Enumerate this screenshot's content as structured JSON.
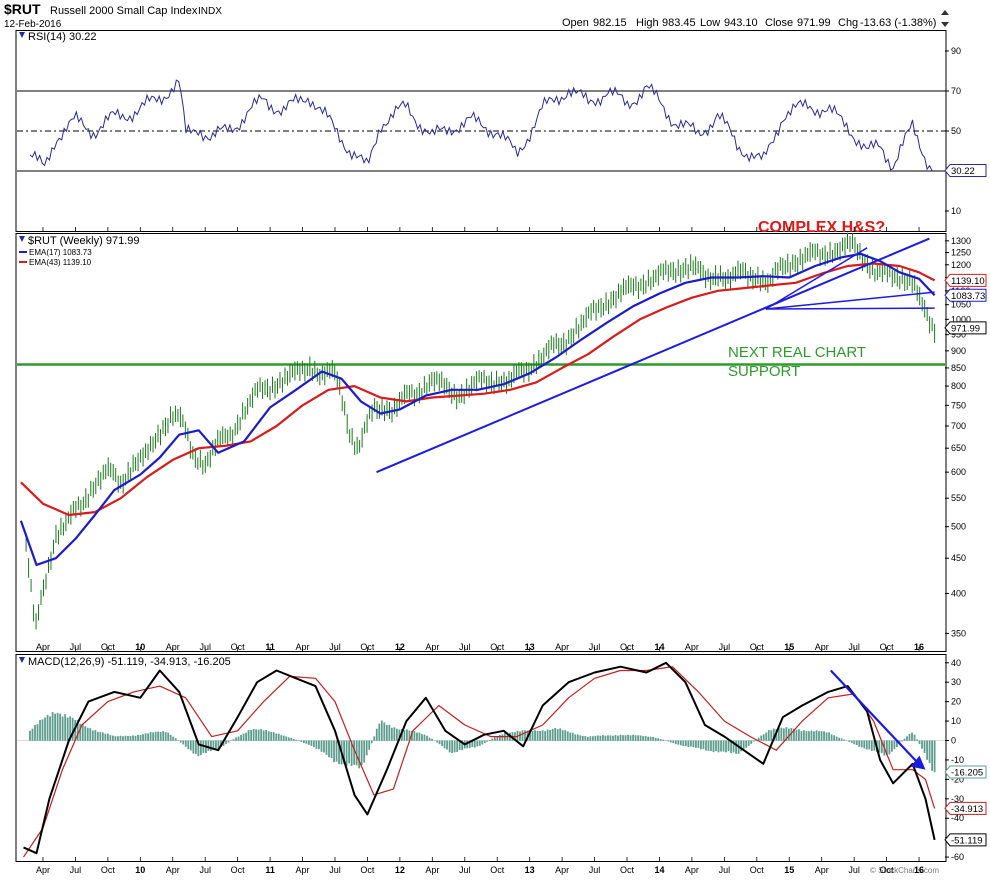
{
  "header": {
    "symbol": "$RUT",
    "name": "Russell 2000 Small Cap Index",
    "exchange": "INDX",
    "date": "12-Feb-2016",
    "open_label": "Open",
    "open": "982.15",
    "high_label": "High",
    "high": "983.45",
    "low_label": "Low",
    "low": "943.10",
    "close_label": "Close",
    "close": "971.99",
    "chg_label": "Chg",
    "chg": "-13.63 (-1.38%)",
    "watermark": "© StockCharts.com"
  },
  "colors": {
    "price_bars": "#1a7a1a",
    "ema17": "#1c1cc8",
    "ema43": "#d81c1c",
    "rsi": "#2a2a9a",
    "macd": "#000000",
    "signal": "#c02020",
    "histogram": "#5f9e8f",
    "support": "#2e9a2e",
    "annotation_red": "#e01818",
    "trendline": "#1c1ce0"
  },
  "chart_data": [
    {
      "type": "line",
      "panel": "rsi",
      "legend": "RSI(14) 30.22",
      "ylim": [
        0,
        100
      ],
      "y_ticks": [
        10,
        30,
        50,
        70,
        90
      ],
      "reference_lines": [
        30,
        50,
        70
      ],
      "last_value_label": "30.22",
      "series": [
        {
          "name": "RSI(14)",
          "x": [
            2009.15,
            2009.26,
            2009.35,
            2009.5,
            2009.65,
            2009.8,
            2009.98,
            2010.15,
            2010.3,
            2010.35,
            2010.45,
            2010.55,
            2010.75,
            2010.95,
            2011.1,
            2011.3,
            2011.45,
            2011.6,
            2011.75,
            2011.85,
            2012.05,
            2012.25,
            2012.4,
            2012.55,
            2012.75,
            2012.9,
            2013.1,
            2013.3,
            2013.45,
            2013.6,
            2013.75,
            2013.9,
            2014.1,
            2014.3,
            2014.45,
            2014.6,
            2014.8,
            2014.95,
            2015.15,
            2015.3,
            2015.45,
            2015.6,
            2015.7,
            2015.8,
            2015.95,
            2016.1
          ],
          "values": [
            38,
            31,
            47,
            55,
            50,
            57,
            60,
            67,
            74,
            48,
            52,
            46,
            54,
            66,
            60,
            68,
            55,
            42,
            31,
            54,
            62,
            47,
            52,
            55,
            50,
            38,
            61,
            71,
            64,
            70,
            63,
            72,
            56,
            48,
            58,
            43,
            34,
            58,
            63,
            60,
            53,
            39,
            43,
            33,
            52,
            30.22
          ]
        }
      ]
    },
    {
      "type": "line",
      "panel": "price",
      "scale": "log",
      "legend": [
        "$RUT (Weekly) 971.99",
        "EMA(17) 1083.73",
        "EMA(43) 1139.10"
      ],
      "ylim": [
        330,
        1330
      ],
      "y_ticks": [
        350,
        400,
        450,
        500,
        550,
        600,
        650,
        700,
        750,
        800,
        850,
        900,
        950,
        1000,
        1050,
        1100,
        1150,
        1200,
        1250,
        1300
      ],
      "last_value_labels": [
        "1139.10",
        "1083.73",
        "971.99"
      ],
      "annotations": [
        "COMPLEX H&S?",
        "NEXT REAL CHART",
        "SUPPORT"
      ],
      "support_level": 860,
      "series": [
        {
          "name": "$RUT (Weekly)",
          "x": [
            2009.12,
            2009.19,
            2009.27,
            2009.35,
            2009.45,
            2009.55,
            2009.65,
            2009.75,
            2009.85,
            2009.95,
            2010.05,
            2010.15,
            2010.25,
            2010.3,
            2010.4,
            2010.5,
            2010.6,
            2010.7,
            2010.8,
            2010.9,
            2011.0,
            2011.1,
            2011.2,
            2011.3,
            2011.4,
            2011.5,
            2011.55,
            2011.62,
            2011.68,
            2011.75,
            2011.8,
            2011.88,
            2011.95,
            2012.05,
            2012.15,
            2012.25,
            2012.35,
            2012.45,
            2012.55,
            2012.65,
            2012.75,
            2012.85,
            2012.95,
            2013.05,
            2013.15,
            2013.25,
            2013.35,
            2013.45,
            2013.55,
            2013.65,
            2013.75,
            2013.85,
            2013.95,
            2014.05,
            2014.15,
            2014.25,
            2014.35,
            2014.45,
            2014.55,
            2014.65,
            2014.75,
            2014.85,
            2014.95,
            2015.05,
            2015.15,
            2015.25,
            2015.35,
            2015.45,
            2015.5,
            2015.55,
            2015.65,
            2015.75,
            2015.85,
            2015.95,
            2016.02,
            2016.08,
            2016.12
          ],
          "values": [
            470,
            350,
            420,
            490,
            510,
            540,
            580,
            600,
            580,
            620,
            630,
            690,
            730,
            720,
            640,
            620,
            660,
            680,
            740,
            780,
            800,
            820,
            830,
            860,
            830,
            830,
            780,
            680,
            650,
            700,
            740,
            750,
            740,
            770,
            790,
            820,
            790,
            780,
            800,
            810,
            820,
            810,
            840,
            870,
            900,
            920,
            970,
            1000,
            1050,
            1080,
            1100,
            1130,
            1150,
            1160,
            1190,
            1200,
            1140,
            1170,
            1140,
            1170,
            1160,
            1120,
            1200,
            1220,
            1230,
            1250,
            1260,
            1270,
            1280,
            1250,
            1180,
            1150,
            1160,
            1140,
            1040,
            990,
            971.99
          ]
        },
        {
          "name": "EMA(17)",
          "x": [
            2009.08,
            2009.2,
            2009.35,
            2009.5,
            2009.65,
            2009.8,
            2010.0,
            2010.15,
            2010.3,
            2010.45,
            2010.6,
            2010.8,
            2011.0,
            2011.2,
            2011.4,
            2011.55,
            2011.7,
            2011.85,
            2012.0,
            2012.2,
            2012.4,
            2012.6,
            2012.8,
            2013.0,
            2013.2,
            2013.4,
            2013.6,
            2013.8,
            2014.0,
            2014.2,
            2014.4,
            2014.6,
            2014.8,
            2015.0,
            2015.2,
            2015.4,
            2015.55,
            2015.7,
            2015.85,
            2016.0,
            2016.12
          ],
          "values": [
            510,
            440,
            450,
            480,
            520,
            565,
            595,
            630,
            680,
            690,
            640,
            665,
            745,
            790,
            840,
            820,
            760,
            730,
            740,
            775,
            790,
            790,
            805,
            835,
            880,
            935,
            990,
            1045,
            1090,
            1130,
            1150,
            1150,
            1155,
            1150,
            1195,
            1230,
            1245,
            1215,
            1170,
            1145,
            1083.73
          ]
        },
        {
          "name": "EMA(43)",
          "x": [
            2009.08,
            2009.25,
            2009.45,
            2009.65,
            2009.85,
            2010.05,
            2010.25,
            2010.45,
            2010.65,
            2010.85,
            2011.05,
            2011.25,
            2011.45,
            2011.65,
            2011.85,
            2012.05,
            2012.25,
            2012.45,
            2012.65,
            2012.85,
            2013.05,
            2013.25,
            2013.45,
            2013.65,
            2013.85,
            2014.05,
            2014.25,
            2014.45,
            2014.65,
            2014.85,
            2015.05,
            2015.25,
            2015.45,
            2015.65,
            2015.85,
            2016.0,
            2016.12
          ],
          "values": [
            580,
            540,
            520,
            525,
            550,
            590,
            625,
            650,
            655,
            665,
            700,
            750,
            790,
            800,
            770,
            760,
            770,
            775,
            780,
            790,
            810,
            850,
            890,
            945,
            1000,
            1040,
            1075,
            1100,
            1110,
            1120,
            1130,
            1165,
            1195,
            1205,
            1195,
            1170,
            1139.1
          ]
        }
      ]
    },
    {
      "type": "line",
      "panel": "macd",
      "legend": "MACD(12,26,9) -51.119, -34.913, -16.205",
      "ylim": [
        -62,
        44
      ],
      "y_ticks": [
        -60,
        -50,
        -40,
        -30,
        -20,
        -10,
        0,
        10,
        20,
        30,
        40
      ],
      "last_value_labels": [
        "-16.205",
        "-34.913",
        "-51.119"
      ],
      "x_ticks": [
        "Apr",
        "Jul",
        "Oct",
        "10",
        "Apr",
        "Jul",
        "Oct",
        "11",
        "Apr",
        "Jul",
        "Oct",
        "12",
        "Apr",
        "Jul",
        "Oct",
        "13",
        "Apr",
        "Jul",
        "Oct",
        "14",
        "Apr",
        "Jul",
        "Oct",
        "15",
        "Apr",
        "Jul",
        "Oct",
        "16"
      ],
      "series": [
        {
          "name": "MACD",
          "x": [
            2009.1,
            2009.2,
            2009.3,
            2009.45,
            2009.6,
            2009.8,
            2010.0,
            2010.15,
            2010.3,
            2010.45,
            2010.6,
            2010.75,
            2010.9,
            2011.05,
            2011.2,
            2011.35,
            2011.5,
            2011.65,
            2011.75,
            2011.9,
            2012.05,
            2012.2,
            2012.35,
            2012.5,
            2012.65,
            2012.8,
            2012.95,
            2013.1,
            2013.3,
            2013.5,
            2013.7,
            2013.9,
            2014.05,
            2014.2,
            2014.35,
            2014.5,
            2014.65,
            2014.8,
            2014.95,
            2015.1,
            2015.3,
            2015.45,
            2015.6,
            2015.7,
            2015.8,
            2015.95,
            2016.05,
            2016.12
          ],
          "values": [
            -55,
            -58,
            -30,
            0,
            20,
            25,
            22,
            36,
            25,
            -2,
            -5,
            12,
            30,
            36,
            32,
            28,
            5,
            -28,
            -38,
            -15,
            10,
            22,
            5,
            -2,
            3,
            5,
            -3,
            18,
            30,
            35,
            38,
            35,
            40,
            30,
            8,
            2,
            -5,
            -12,
            12,
            18,
            25,
            28,
            15,
            -10,
            -22,
            -12,
            -30,
            -51.119
          ]
        },
        {
          "name": "Signal",
          "x": [
            2009.1,
            2009.25,
            2009.4,
            2009.55,
            2009.75,
            2009.95,
            2010.15,
            2010.35,
            2010.55,
            2010.75,
            2010.95,
            2011.15,
            2011.35,
            2011.5,
            2011.65,
            2011.8,
            2011.95,
            2012.1,
            2012.3,
            2012.5,
            2012.7,
            2012.9,
            2013.1,
            2013.3,
            2013.5,
            2013.7,
            2013.9,
            2014.1,
            2014.3,
            2014.5,
            2014.7,
            2014.9,
            2015.1,
            2015.3,
            2015.5,
            2015.65,
            2015.8,
            2015.95,
            2016.05,
            2016.12
          ],
          "values": [
            -60,
            -45,
            -15,
            8,
            20,
            25,
            28,
            22,
            2,
            5,
            20,
            33,
            32,
            20,
            -5,
            -28,
            -25,
            5,
            18,
            8,
            2,
            2,
            8,
            22,
            32,
            36,
            36,
            38,
            25,
            10,
            2,
            -5,
            10,
            22,
            24,
            10,
            -15,
            -15,
            -20,
            -34.913
          ]
        },
        {
          "name": "Histogram",
          "x": [
            2009.15,
            2009.35,
            2009.55,
            2009.8,
            2010.0,
            2010.2,
            2010.45,
            2010.6,
            2010.85,
            2011.05,
            2011.3,
            2011.5,
            2011.7,
            2011.85,
            2012.0,
            2012.2,
            2012.4,
            2012.6,
            2012.8,
            2013.0,
            2013.2,
            2013.45,
            2013.7,
            2013.95,
            2014.2,
            2014.4,
            2014.6,
            2014.85,
            2015.05,
            2015.3,
            2015.55,
            2015.75,
            2015.95,
            2016.12
          ],
          "values": [
            5,
            16,
            8,
            2,
            3,
            5,
            -8,
            -4,
            6,
            4,
            -2,
            -10,
            -15,
            10,
            6,
            3,
            -6,
            -3,
            4,
            5,
            6,
            2,
            3,
            2,
            -3,
            -5,
            -7,
            6,
            6,
            4,
            -3,
            -8,
            5,
            -16.205
          ]
        }
      ]
    }
  ]
}
